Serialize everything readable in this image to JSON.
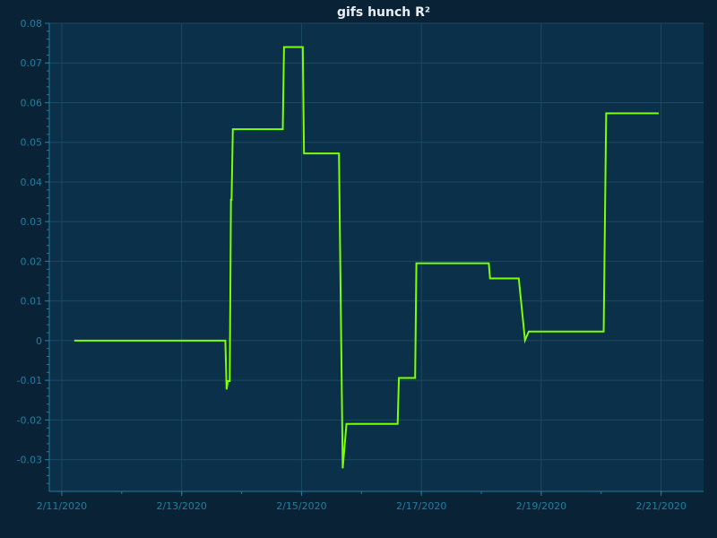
{
  "colors": {
    "page_background": "#0a2236",
    "plot_background": "#0b3049",
    "grid": "#1c4a60",
    "axis": "#1f7fa0",
    "series": "#7cff00",
    "title": "#e8eef4"
  },
  "chart_data": {
    "type": "line",
    "title": "gifs hunch R²",
    "xlabel": "",
    "ylabel": "",
    "x_axis_type": "date",
    "xlim": [
      "2020-02-10T19:00",
      "2020-02-21T17:00"
    ],
    "ylim": [
      -0.038,
      0.08
    ],
    "grid": true,
    "legend": "none",
    "x_ticks": [
      {
        "value": "2020-02-11",
        "label": "2/11/2020"
      },
      {
        "value": "2020-02-13",
        "label": "2/13/2020"
      },
      {
        "value": "2020-02-15",
        "label": "2/15/2020"
      },
      {
        "value": "2020-02-17",
        "label": "2/17/2020"
      },
      {
        "value": "2020-02-19",
        "label": "2/19/2020"
      },
      {
        "value": "2020-02-21",
        "label": "2/21/2020"
      }
    ],
    "y_ticks": [
      {
        "value": 0.08,
        "label": "0.08"
      },
      {
        "value": 0.07,
        "label": "0.07"
      },
      {
        "value": 0.06,
        "label": "0.06"
      },
      {
        "value": 0.05,
        "label": "0.05"
      },
      {
        "value": 0.04,
        "label": "0.04"
      },
      {
        "value": 0.03,
        "label": "0.03"
      },
      {
        "value": 0.02,
        "label": "0.02"
      },
      {
        "value": 0.01,
        "label": "0.01"
      },
      {
        "value": 0,
        "label": "0"
      },
      {
        "value": -0.01,
        "label": "-0.01"
      },
      {
        "value": -0.02,
        "label": "-0.02"
      },
      {
        "value": -0.03,
        "label": "-0.03"
      }
    ],
    "series": [
      {
        "color": "#7cff00",
        "points": [
          {
            "x": "2020-02-11T05:00",
            "y": 0.0
          },
          {
            "x": "2020-02-13T17:30",
            "y": 0.0
          },
          {
            "x": "2020-02-13T18:00",
            "y": -0.0123
          },
          {
            "x": "2020-02-13T18:30",
            "y": -0.0102
          },
          {
            "x": "2020-02-13T19:15",
            "y": -0.0102
          },
          {
            "x": "2020-02-13T19:45",
            "y": 0.0355
          },
          {
            "x": "2020-02-13T20:00",
            "y": 0.0355
          },
          {
            "x": "2020-02-13T20:30",
            "y": 0.0533
          },
          {
            "x": "2020-02-14T16:30",
            "y": 0.0533
          },
          {
            "x": "2020-02-14T17:00",
            "y": 0.074
          },
          {
            "x": "2020-02-15T00:30",
            "y": 0.074
          },
          {
            "x": "2020-02-15T01:00",
            "y": 0.0472
          },
          {
            "x": "2020-02-15T15:00",
            "y": 0.0472
          },
          {
            "x": "2020-02-15T16:30",
            "y": -0.0322
          },
          {
            "x": "2020-02-15T18:00",
            "y": -0.021
          },
          {
            "x": "2020-02-16T14:30",
            "y": -0.021
          },
          {
            "x": "2020-02-16T15:00",
            "y": -0.0094
          },
          {
            "x": "2020-02-16T21:30",
            "y": -0.0094
          },
          {
            "x": "2020-02-16T22:00",
            "y": 0.0195
          },
          {
            "x": "2020-02-18T03:00",
            "y": 0.0195
          },
          {
            "x": "2020-02-18T03:30",
            "y": 0.0157
          },
          {
            "x": "2020-02-18T15:00",
            "y": 0.0157
          },
          {
            "x": "2020-02-18T17:30",
            "y": 0.0001
          },
          {
            "x": "2020-02-18T19:00",
            "y": 0.0023
          },
          {
            "x": "2020-02-20T01:00",
            "y": 0.0023
          },
          {
            "x": "2020-02-20T02:00",
            "y": 0.0573
          },
          {
            "x": "2020-02-20T23:00",
            "y": 0.0573
          }
        ]
      }
    ]
  }
}
